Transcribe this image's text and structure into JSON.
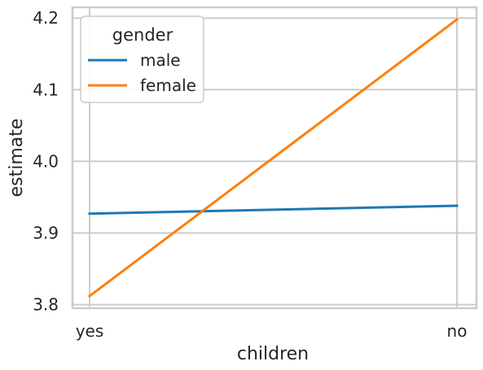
{
  "chart_data": {
    "type": "line",
    "categories": [
      "yes",
      "no"
    ],
    "series": [
      {
        "name": "male",
        "values": [
          3.927,
          3.938
        ],
        "color": "#1f77b4"
      },
      {
        "name": "female",
        "values": [
          3.812,
          4.198
        ],
        "color": "#ff7f0e"
      }
    ],
    "xlabel": "children",
    "ylabel": "estimate",
    "ylim": [
      3.795,
      4.215
    ],
    "yticks": [
      3.8,
      3.9,
      4.0,
      4.1,
      4.2
    ],
    "ytick_labels": [
      "3.8",
      "3.9",
      "4.0",
      "4.1",
      "4.2"
    ],
    "grid": true,
    "legend": {
      "title": "gender",
      "placement": "top-left"
    },
    "colors": {
      "grid": "#cccccc",
      "frame": "#cccccc",
      "text": "#262626"
    }
  }
}
